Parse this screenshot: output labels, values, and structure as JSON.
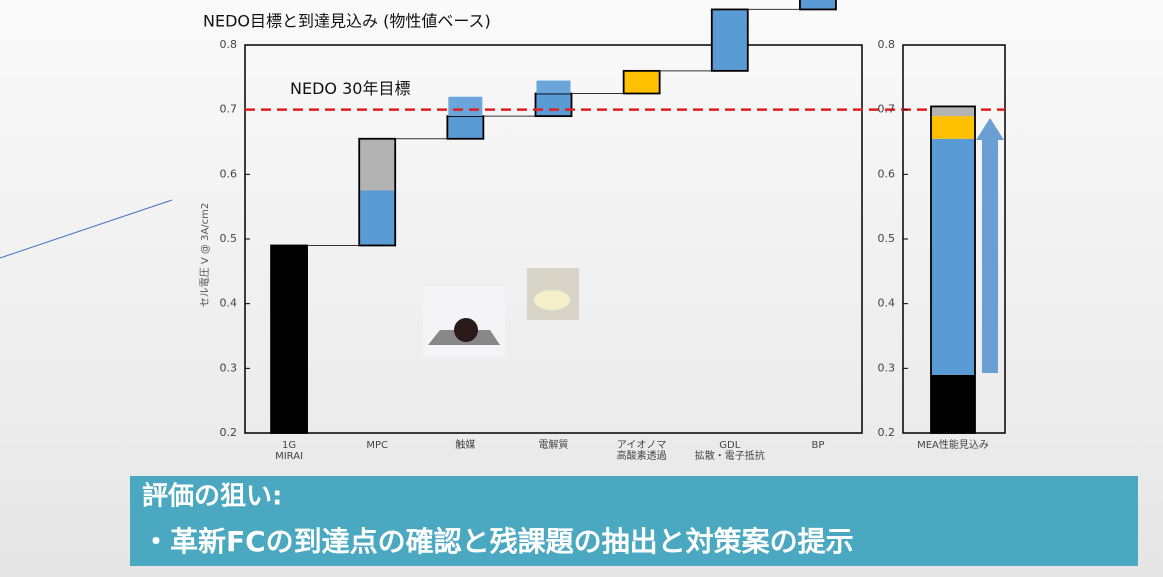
{
  "chart_data": [
    {
      "type": "waterfall",
      "title": "NEDO目標と到達見込み (物性値ベース)",
      "ylabel": "セル電圧 V @ 3A/cm2",
      "categories": [
        [
          "1G",
          "MIRAI"
        ],
        [
          "MPC"
        ],
        [
          "触媒"
        ],
        [
          "電解質"
        ],
        [
          "アイオノマ",
          "高酸素透過"
        ],
        [
          "GDL",
          "拡散・電子抵抗"
        ],
        [
          "BP"
        ]
      ],
      "steps": [
        {
          "parts": [
            {
              "value": 0.29,
              "color": "#000000"
            }
          ]
        },
        {
          "parts": [
            {
              "value": 0.085,
              "color": "#5b9bd5"
            },
            {
              "value": 0.08,
              "color": "#b3b3b3"
            }
          ]
        },
        {
          "parts": [
            {
              "value": 0.035,
              "color": "#5b9bd5"
            }
          ],
          "extra": {
            "value": 0.03,
            "color": "#6aa6dc"
          }
        },
        {
          "parts": [
            {
              "value": 0.035,
              "color": "#5b9bd5"
            }
          ],
          "extra": {
            "value": 0.02,
            "color": "#6aa6dc"
          }
        },
        {
          "parts": [
            {
              "value": 0.035,
              "color": "#ffc000"
            }
          ]
        },
        {
          "parts": [
            {
              "value": 0.095,
              "color": "#5b9bd5"
            }
          ]
        },
        {
          "parts": [
            {
              "value": 0.05,
              "color": "#5b9bd5"
            }
          ]
        }
      ],
      "ylim": [
        0.2,
        0.8
      ],
      "yticks": [
        0.2,
        0.3,
        0.4,
        0.5,
        0.6,
        0.7,
        0.8
      ],
      "target": {
        "value": 0.7,
        "label": "NEDO 30年目標",
        "color": "#e02020"
      }
    },
    {
      "type": "stacked-bar",
      "categories": [
        "MEA性能見込み"
      ],
      "segments": [
        {
          "value": 0.29,
          "color": "#000000"
        },
        {
          "value": 0.365,
          "color": "#5b9bd5"
        },
        {
          "value": 0.035,
          "color": "#ffc000"
        },
        {
          "value": 0.015,
          "color": "#b3b3b3"
        }
      ],
      "ylim": [
        0.2,
        0.8
      ],
      "yticks": [
        0.2,
        0.3,
        0.4,
        0.5,
        0.6,
        0.7,
        0.8
      ]
    }
  ],
  "banner": {
    "heading": "評価の狙い:",
    "text": "・革新FCの到達点の確認と残課題の抽出と対策案の提示"
  }
}
